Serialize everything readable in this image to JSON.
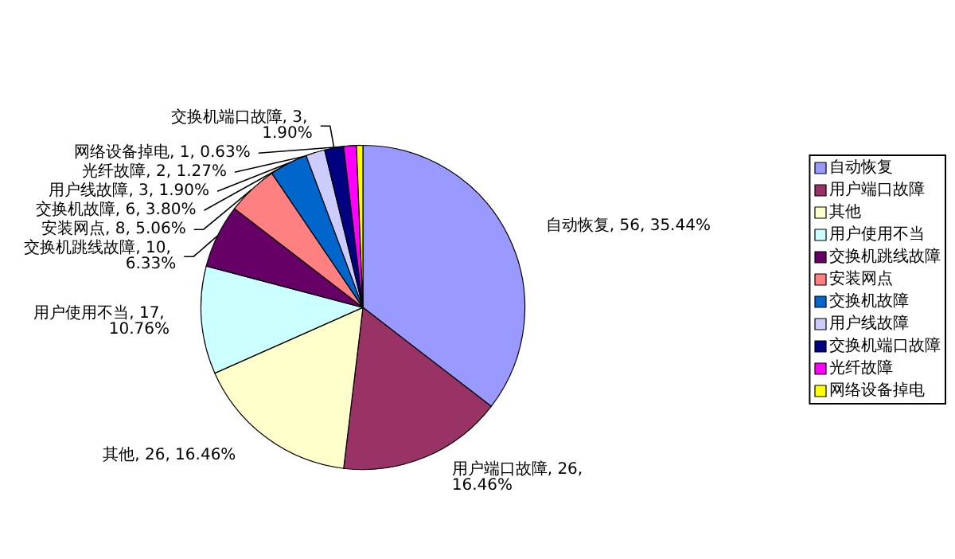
{
  "chart_data": {
    "type": "pie",
    "categories": [
      "自动恢复",
      "用户端口故障",
      "其他",
      "用户使用不当",
      "交换机跳线故障",
      "安装网点",
      "交换机故障",
      "用户线故障",
      "交换机端口故障",
      "光纤故障",
      "网络设备掉电"
    ],
    "values": [
      56,
      26,
      26,
      17,
      10,
      8,
      6,
      3,
      3,
      2,
      1
    ],
    "value_labels": [
      "自动恢复, 56, 35.44%",
      "用户端口故障, 26, 16.46%",
      "其他, 26, 16.46%",
      "用户使用不当, 17, 10.76%",
      "交换机跳线故障, 10, 6.33%",
      "安装网点, 8, 5.06%",
      "交换机故障, 6, 3.80%",
      "用户线故障, 3, 1.90%",
      "交换机端口故障, 3, 1.90%",
      "光纤故障, 2, 1.27%",
      "网络设备掉电, 1, 0.63%"
    ],
    "colors": [
      "#9999ff",
      "#993366",
      "#ffffcc",
      "#ccffff",
      "#660066",
      "#ff8080",
      "#0066cc",
      "#ccccff",
      "#000080",
      "#ff00ff",
      "#ffff00"
    ],
    "legend": "right"
  }
}
